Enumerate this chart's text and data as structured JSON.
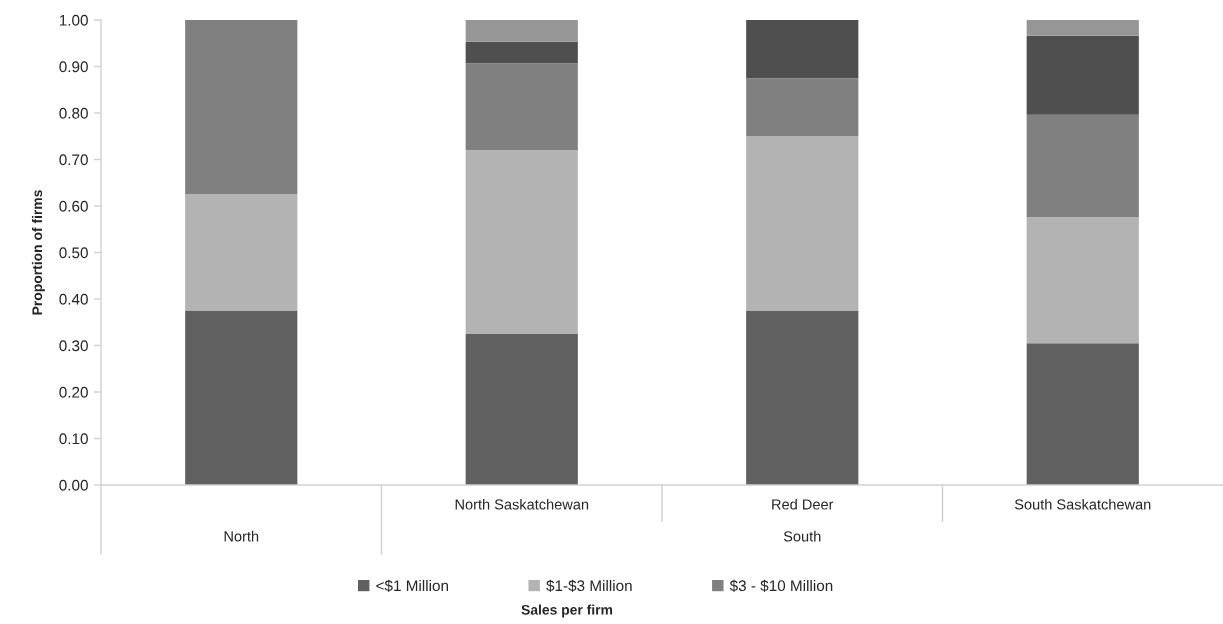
{
  "chart_data": {
    "type": "bar",
    "stacked": true,
    "categories": [
      null,
      "North Saskatchewan",
      "Red Deer",
      "South Saskatchewan"
    ],
    "series": [
      {
        "name": "<$1 Million",
        "color": "#606060",
        "values": [
          0.375,
          0.325,
          0.375,
          0.305
        ]
      },
      {
        "name": "$1-$3 Million",
        "color": "#b3b3b3",
        "values": [
          0.25,
          0.395,
          0.375,
          0.271
        ]
      },
      {
        "name": "$3 - $10 Million",
        "color": "#808080",
        "values": [
          0.375,
          0.187,
          0.125,
          0.22
        ]
      },
      {
        "color": "#4f4f4f",
        "values": [
          0,
          0.046,
          0.125,
          0.17
        ]
      },
      {
        "color": "#969696",
        "values": [
          0,
          0.047,
          0,
          0.034
        ]
      }
    ],
    "ylabel": "Proportion of firms",
    "legend_title": "Sales per firm",
    "annotations": [
      "North",
      "South"
    ],
    "ylim": [
      0,
      1
    ],
    "yticks": [
      {
        "value": 0,
        "label": "0.00"
      },
      {
        "value": 0.1,
        "label": "0.10"
      },
      {
        "value": 0.2,
        "label": "0.20"
      },
      {
        "value": 0.3,
        "label": "0.30"
      },
      {
        "value": 0.4,
        "label": "0.40"
      },
      {
        "value": 0.5,
        "label": "0.50"
      },
      {
        "value": 0.6,
        "label": "0.60"
      },
      {
        "value": 0.7,
        "label": "0.70"
      },
      {
        "value": 0.8,
        "label": "0.80"
      },
      {
        "value": 0.9,
        "label": "0.90"
      },
      {
        "value": 1,
        "label": "1.00"
      }
    ],
    "legend": "bottom",
    "grid": false
  }
}
